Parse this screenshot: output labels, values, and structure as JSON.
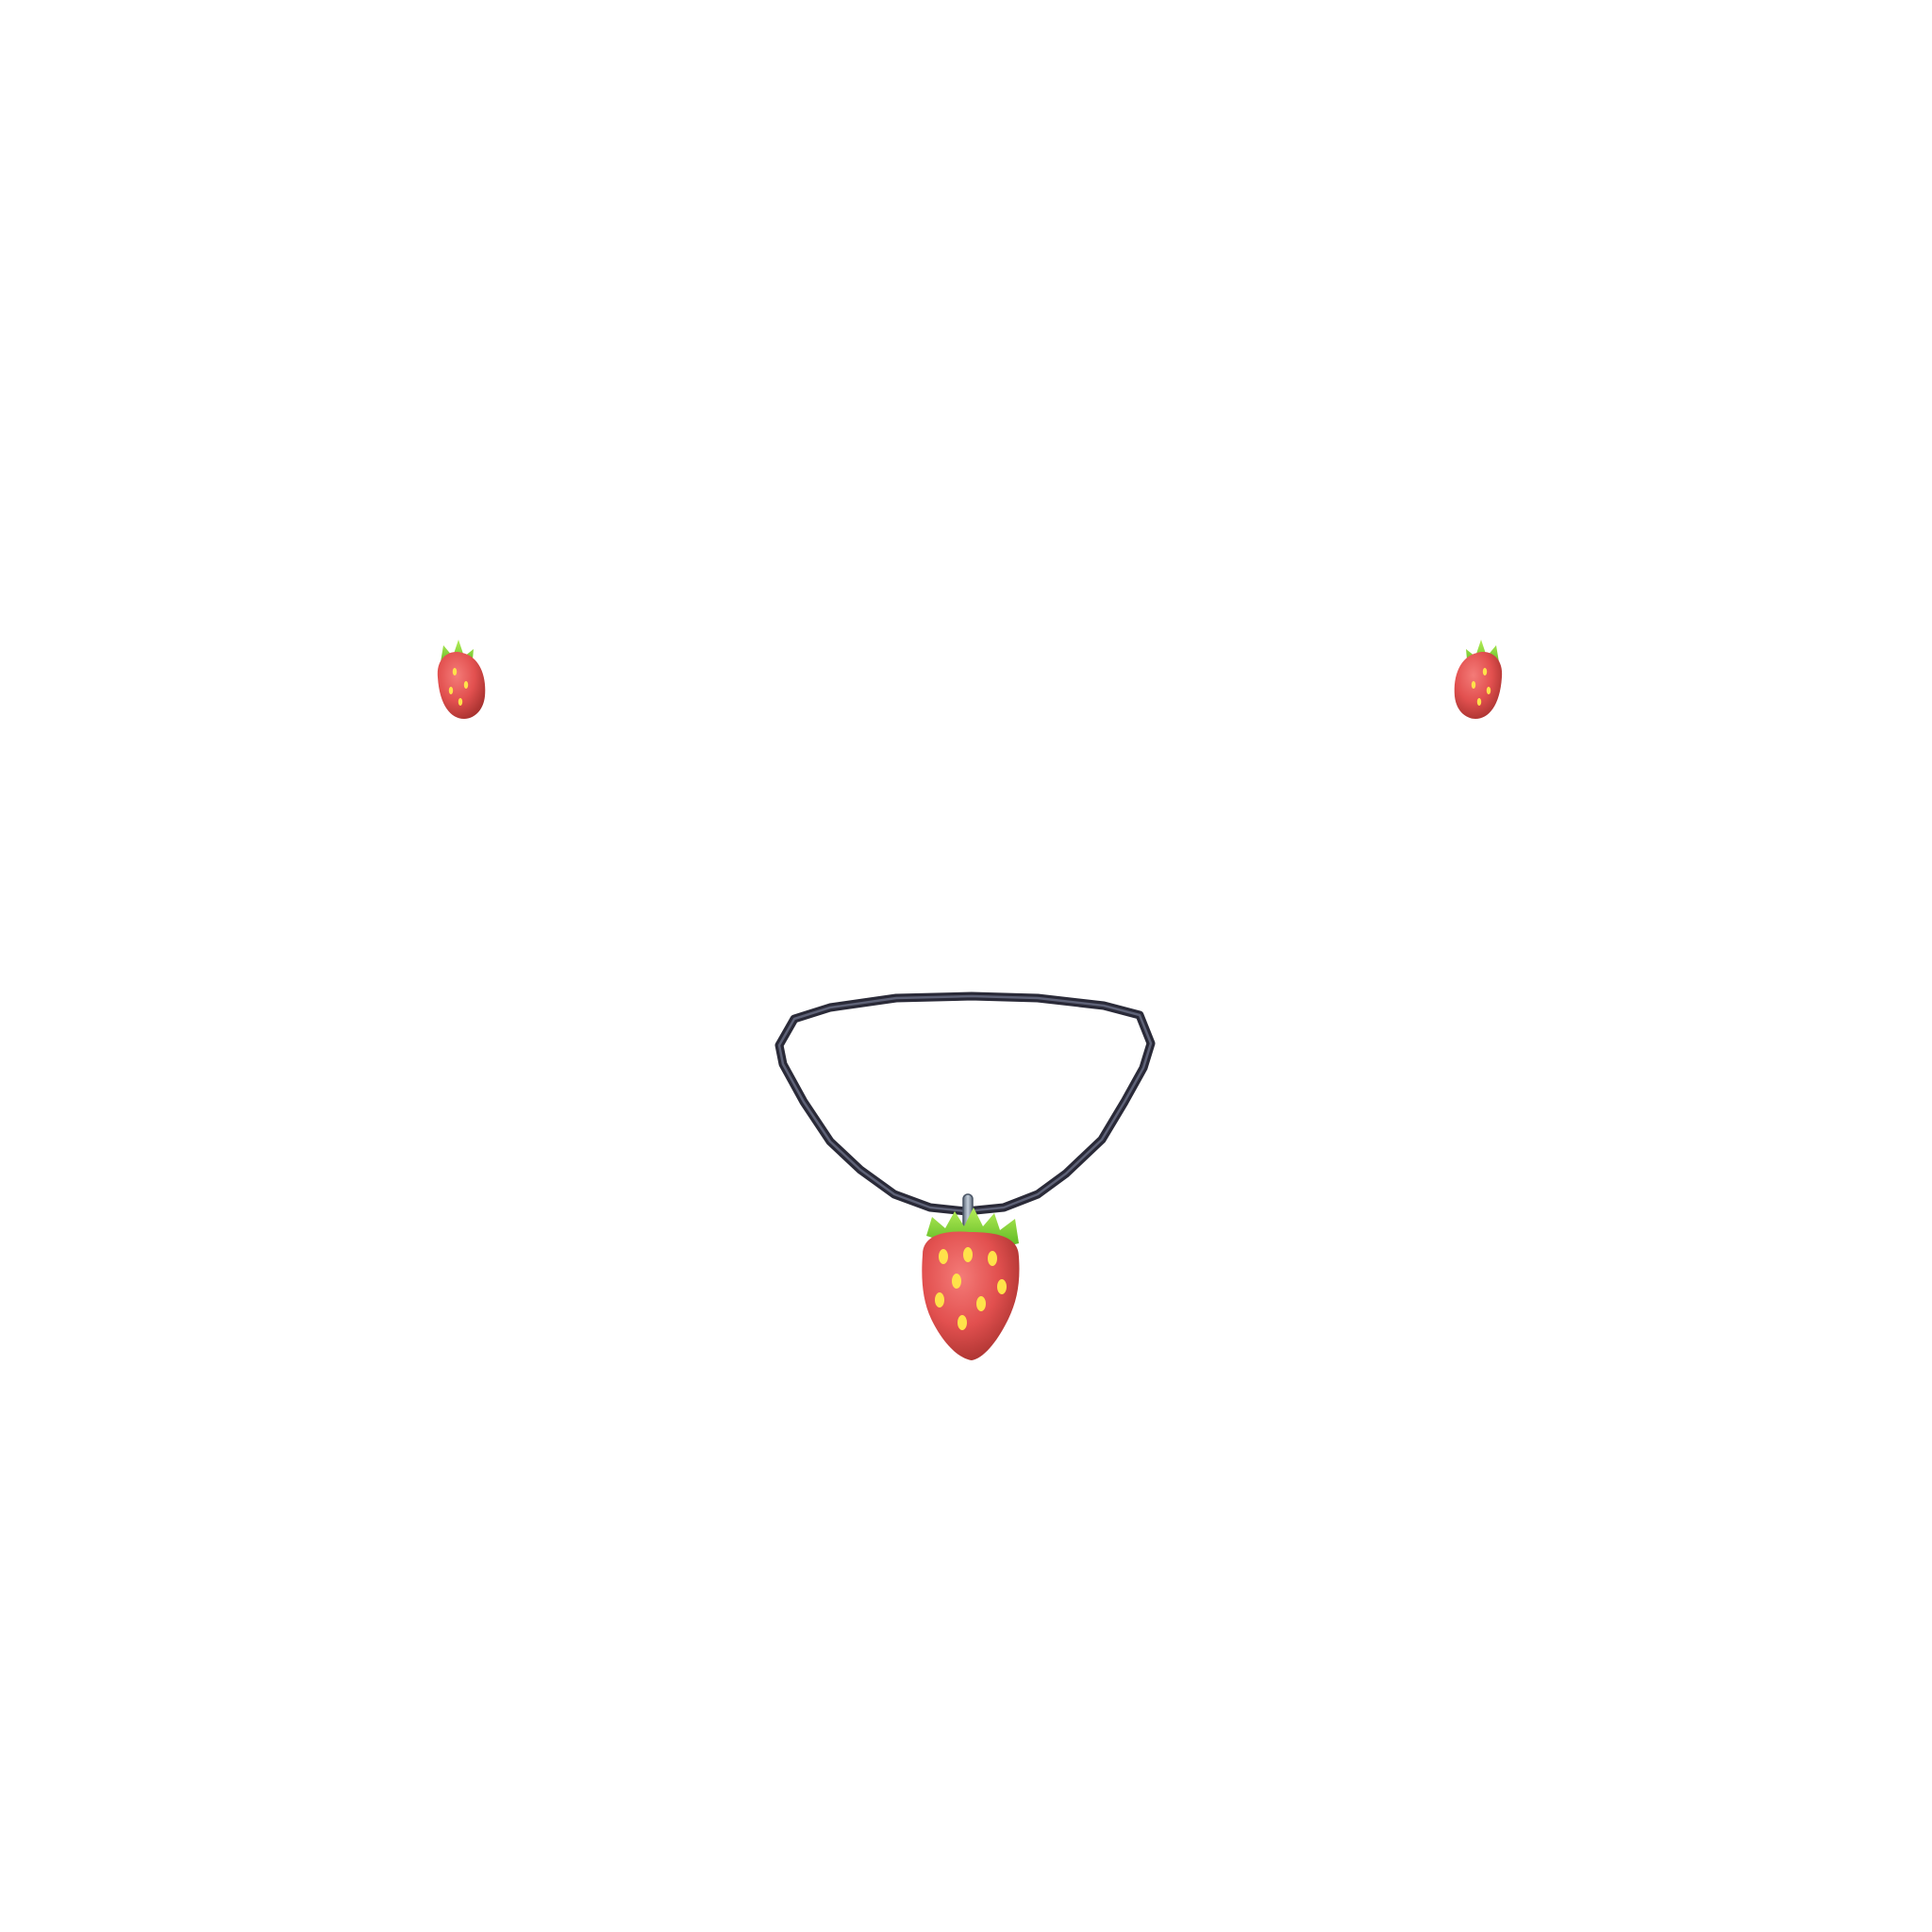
{
  "scene": {
    "background_color": "#ffffff",
    "items": [
      {
        "name": "strawberry-earring-left",
        "icon": "strawberry-icon"
      },
      {
        "name": "strawberry-earring-right",
        "icon": "strawberry-icon"
      },
      {
        "name": "strawberry-pendant-necklace",
        "icon": "necklace-icon"
      }
    ],
    "colors": {
      "berry_red": "#e2504f",
      "berry_dark": "#a8322f",
      "leaf_green": "#66cc22",
      "leaf_light": "#a6e84a",
      "seed_yellow": "#ffe24a",
      "cord_dark": "#2a2a38",
      "cord_mid": "#6a6f86",
      "bail_grey": "#8a97a8"
    }
  }
}
